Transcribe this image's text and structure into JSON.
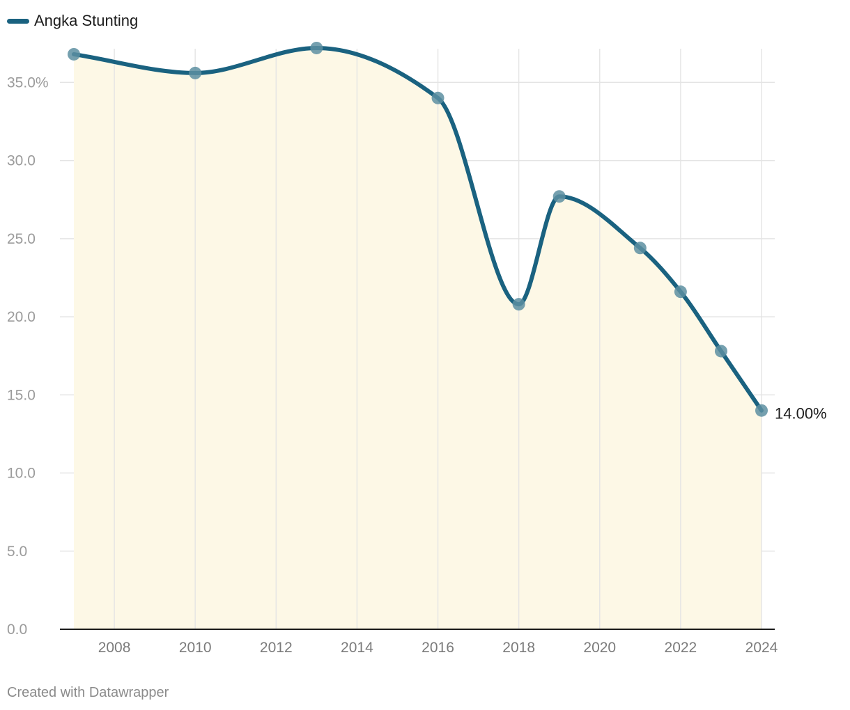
{
  "chart_data": {
    "type": "line",
    "legend": {
      "position": "top-left",
      "entries": [
        "Angka Stunting"
      ]
    },
    "series": [
      {
        "name": "Angka Stunting",
        "x": [
          2007,
          2010,
          2013,
          2016,
          2018,
          2019,
          2021,
          2022,
          2023,
          2024
        ],
        "values": [
          36.8,
          35.6,
          37.2,
          34.0,
          20.8,
          27.7,
          24.4,
          21.6,
          17.8,
          14.0
        ]
      }
    ],
    "xlim": [
      2006.65,
      2024.35
    ],
    "ylim": [
      0,
      37.6
    ],
    "x_ticks": [
      2008,
      2010,
      2012,
      2014,
      2016,
      2018,
      2020,
      2022,
      2024
    ],
    "x_tick_labels": [
      "2008",
      "2010",
      "2012",
      "2014",
      "2016",
      "2018",
      "2020",
      "2022",
      "2024"
    ],
    "y_ticks": [
      0,
      5,
      10,
      15,
      20,
      25,
      30,
      35
    ],
    "y_tick_labels": [
      "0.0",
      "5.0",
      "10.0",
      "15.0",
      "20.0",
      "25.0",
      "30.0",
      "35.0%"
    ],
    "end_label": "14.00%",
    "grid": true,
    "area_fill": true,
    "colors": {
      "line": "#1a6280",
      "marker": "#5d8fa1",
      "area": "#fdf8e6",
      "grid": "#e4e4e4",
      "axis": "#1a1a1a"
    }
  },
  "footer": {
    "credit": "Created with Datawrapper"
  }
}
